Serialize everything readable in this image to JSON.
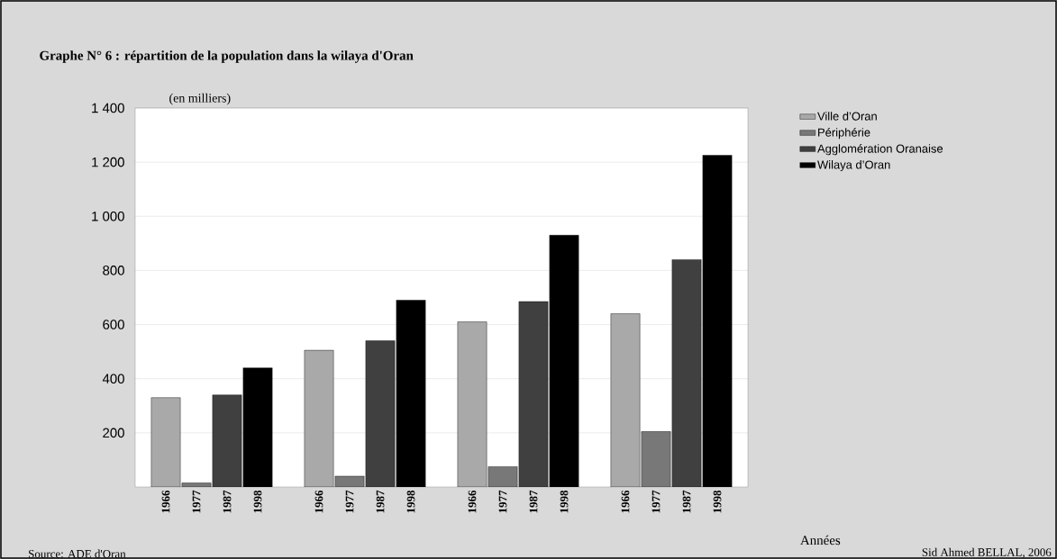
{
  "chart_data": {
    "type": "bar",
    "title": "Graphe N° 6 : répartition de la population dans la wilaya d'Oran",
    "ylabel": "(en milliers)",
    "xlabel": "Années",
    "annotations": [
      "Source: ADE d'Oran",
      "Sid Ahmed BELLAL, 2006"
    ],
    "categories": [
      "1966",
      "1977",
      "1987",
      "1998",
      "1966",
      "1977",
      "1987",
      "1998",
      "1966",
      "1977",
      "1987",
      "1998",
      "1966",
      "1977",
      "1987",
      "1998"
    ],
    "series": [
      {
        "name": "Ville d’Oran",
        "color": "#a9a9a9",
        "values": [
          330,
          null,
          null,
          null,
          505,
          null,
          null,
          null,
          610,
          null,
          null,
          null,
          640,
          null,
          null,
          null
        ]
      },
      {
        "name": "Périphérie",
        "color": "#787878",
        "values": [
          null,
          15,
          null,
          null,
          null,
          40,
          null,
          null,
          null,
          75,
          null,
          null,
          null,
          205,
          null,
          null
        ]
      },
      {
        "name": "Agglomération Oranaise",
        "color": "#404040",
        "values": [
          null,
          null,
          340,
          null,
          null,
          null,
          540,
          null,
          null,
          null,
          685,
          null,
          null,
          null,
          840,
          null
        ]
      },
      {
        "name": "Wilaya d’Oran",
        "color": "#000000",
        "values": [
          null,
          null,
          null,
          440,
          null,
          null,
          null,
          690,
          null,
          null,
          null,
          930,
          null,
          null,
          null,
          1225
        ]
      }
    ],
    "ylim": [
      0,
      1400
    ],
    "yticks": [
      {
        "value": 200,
        "label": "200"
      },
      {
        "value": 400,
        "label": "400"
      },
      {
        "value": 600,
        "label": "600"
      },
      {
        "value": 800,
        "label": "800"
      },
      {
        "value": 1000,
        "label": "1 000"
      },
      {
        "value": 1200,
        "label": "1 200"
      },
      {
        "value": 1400,
        "label": "1 400"
      }
    ],
    "grid": "y",
    "legend": "right"
  }
}
